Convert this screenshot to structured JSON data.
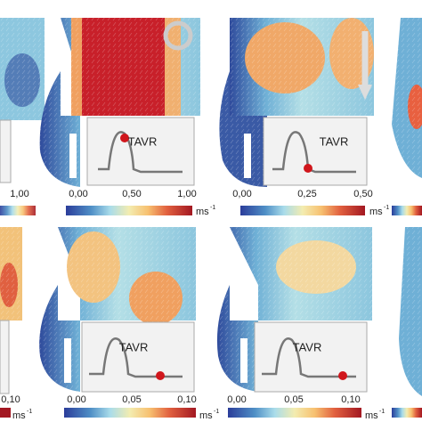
{
  "top_row": {
    "left_panel": {
      "tick": "1,00"
    },
    "panels": [
      {
        "inset_label": "TAVR",
        "ticks": [
          "0,00",
          "0,50",
          "1,00"
        ],
        "unit": "ms",
        "unit_exp": "-1"
      },
      {
        "inset_label": "TAVR",
        "ticks": [
          "0,00",
          "0,25",
          "0,50"
        ],
        "unit": "ms",
        "unit_exp": "-1"
      }
    ]
  },
  "bottom_row": {
    "left_panel": {
      "tick": "0,10",
      "unit": "ms",
      "unit_exp": "-1"
    },
    "panels": [
      {
        "inset_label": "TAVR",
        "ticks": [
          "0,00",
          "0,05",
          "0,10"
        ],
        "unit": "ms",
        "unit_exp": "-1"
      },
      {
        "inset_label": "TAVR",
        "ticks": [
          "0,00",
          "0,05",
          "0,10"
        ],
        "unit": "ms",
        "unit_exp": "-1"
      }
    ]
  }
}
